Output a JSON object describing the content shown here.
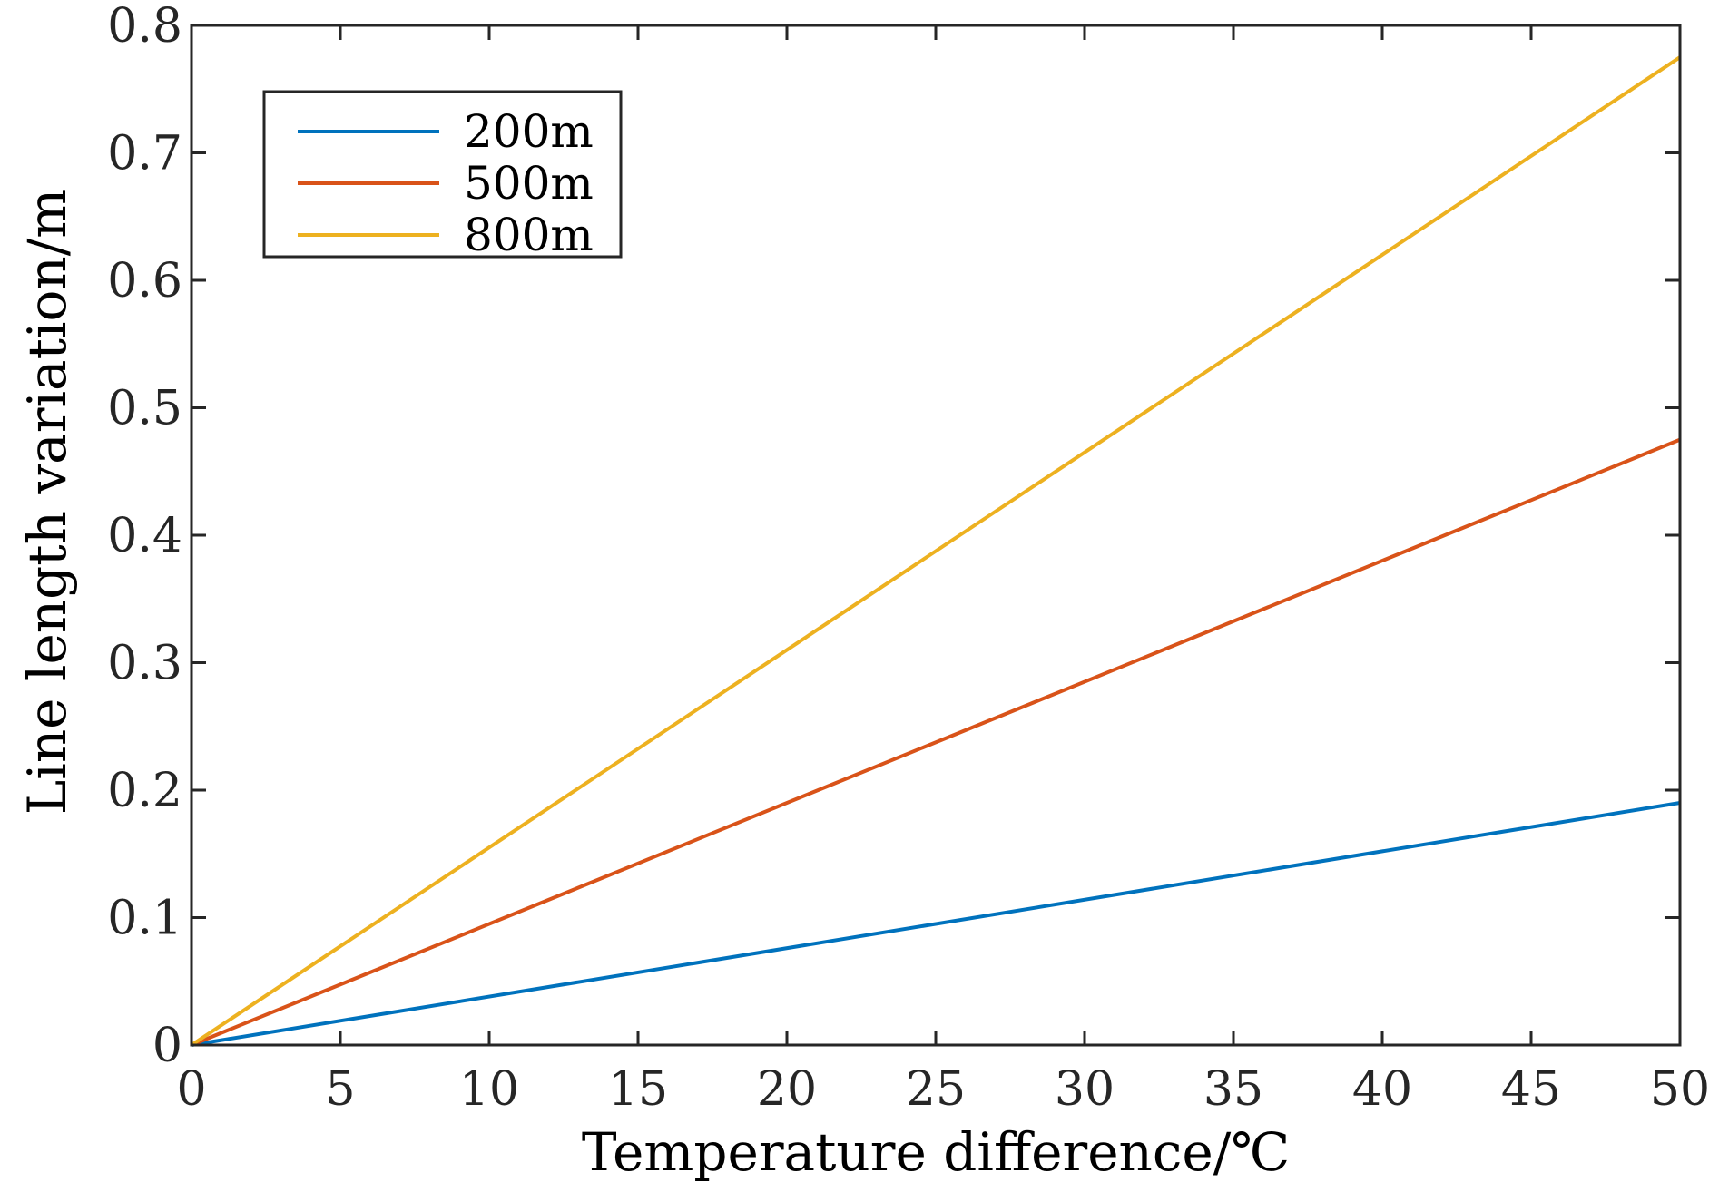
{
  "chart_data": {
    "type": "line",
    "title": "",
    "xlabel": "Temperature difference/℃",
    "ylabel": "Line length variation/m",
    "xlim": [
      0,
      50
    ],
    "ylim": [
      0,
      0.8
    ],
    "xticks": [
      0,
      5,
      10,
      15,
      20,
      25,
      30,
      35,
      40,
      45,
      50
    ],
    "yticks": [
      0,
      0.1,
      0.2,
      0.3,
      0.4,
      0.5,
      0.6,
      0.7,
      0.8
    ],
    "xtick_labels": [
      "0",
      "5",
      "10",
      "15",
      "20",
      "25",
      "30",
      "35",
      "40",
      "45",
      "50"
    ],
    "ytick_labels": [
      "0",
      "0.1",
      "0.2",
      "0.3",
      "0.4",
      "0.5",
      "0.6",
      "0.7",
      "0.8"
    ],
    "grid": false,
    "legend_position": "top-left",
    "series": [
      {
        "name": "200m",
        "color": "#0072BD",
        "x": [
          0,
          50
        ],
        "values": [
          0,
          0.19
        ]
      },
      {
        "name": "500m",
        "color": "#D95319",
        "x": [
          0,
          50
        ],
        "values": [
          0,
          0.475
        ]
      },
      {
        "name": "800m",
        "color": "#EDB120",
        "x": [
          0,
          50
        ],
        "values": [
          0,
          0.775
        ]
      }
    ]
  }
}
